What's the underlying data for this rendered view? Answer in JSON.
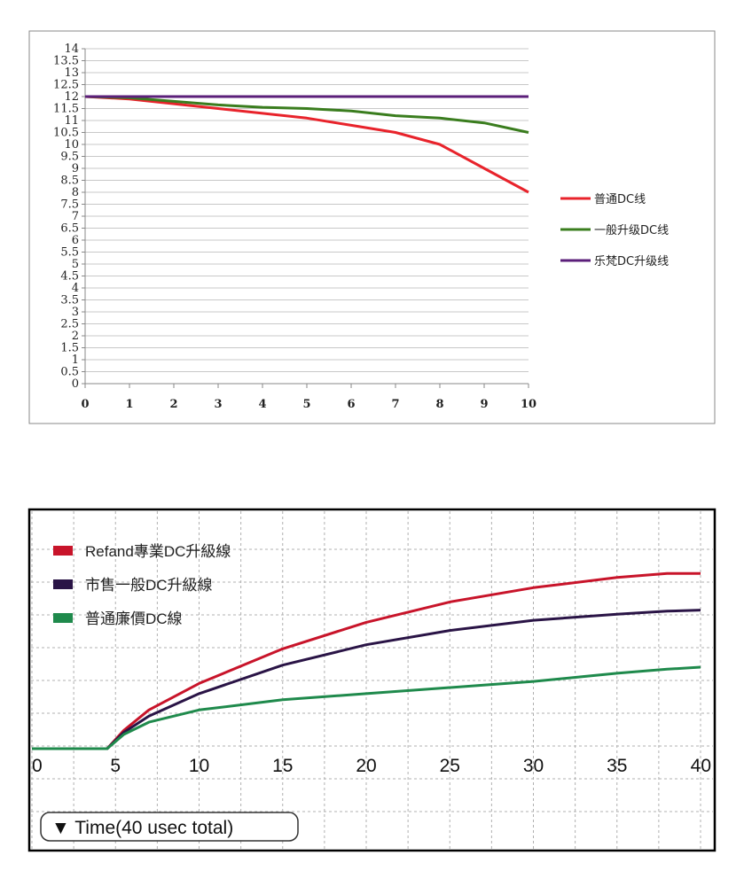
{
  "chart_data": [
    {
      "type": "line",
      "x": [
        0,
        1,
        2,
        3,
        4,
        5,
        6,
        7,
        8,
        9,
        10
      ],
      "xlim": [
        0,
        10
      ],
      "ylim": [
        0,
        14
      ],
      "xticks": [
        "0",
        "1",
        "2",
        "3",
        "4",
        "5",
        "6",
        "7",
        "8",
        "9",
        "10"
      ],
      "yticks": [
        "0",
        "0.5",
        "1",
        "1.5",
        "2",
        "2.5",
        "3",
        "3.5",
        "4",
        "4.5",
        "5",
        "5.5",
        "6",
        "6.5",
        "7",
        "7.5",
        "8",
        "8.5",
        "9",
        "9.5",
        "10",
        "10.5",
        "11",
        "11.5",
        "12",
        "12.5",
        "13",
        "13.5",
        "14"
      ],
      "grid": true,
      "legend_position": "right",
      "series": [
        {
          "name": "普通DC线",
          "color": "#e8232b",
          "values": [
            12,
            11.9,
            11.7,
            11.5,
            11.3,
            11.1,
            10.8,
            10.5,
            10.0,
            9.0,
            8.0
          ]
        },
        {
          "name": "一般升级DC线",
          "color": "#3a7d1e",
          "values": [
            12,
            11.95,
            11.8,
            11.65,
            11.55,
            11.5,
            11.4,
            11.2,
            11.1,
            10.9,
            10.5
          ]
        },
        {
          "name": "乐梵DC升级线",
          "color": "#5b1f7a",
          "values": [
            12,
            12,
            12,
            12,
            12,
            12,
            12,
            12,
            12,
            12,
            12
          ]
        }
      ]
    },
    {
      "type": "line",
      "xlim": [
        0,
        40
      ],
      "ylim": [
        0,
        10
      ],
      "xticks": [
        "0",
        "5",
        "10",
        "15",
        "20",
        "25",
        "30",
        "35",
        "40"
      ],
      "grid": true,
      "legend_position": "top-left",
      "xlabel": "▼ Time(40 usec total)",
      "series": [
        {
          "name": "Refand專業DC升級線",
          "color": "#c8142a",
          "x": [
            0,
            4.5,
            5.5,
            7,
            10,
            15,
            20,
            25,
            30,
            35,
            38,
            40
          ],
          "values": [
            0,
            0,
            0.9,
            1.9,
            3.2,
            4.9,
            6.2,
            7.2,
            7.9,
            8.4,
            8.6,
            8.6
          ]
        },
        {
          "name": "市售一般DC升級線",
          "color": "#2a1446",
          "x": [
            0,
            4.5,
            5.5,
            7,
            10,
            15,
            20,
            25,
            30,
            35,
            38,
            40
          ],
          "values": [
            0,
            0,
            0.8,
            1.6,
            2.7,
            4.1,
            5.1,
            5.8,
            6.3,
            6.6,
            6.75,
            6.8
          ]
        },
        {
          "name": "普通廉價DC線",
          "color": "#1f8a4c",
          "x": [
            0,
            4.5,
            5.5,
            7,
            10,
            15,
            20,
            25,
            30,
            35,
            38,
            40
          ],
          "values": [
            0,
            0,
            0.7,
            1.3,
            1.9,
            2.4,
            2.7,
            3.0,
            3.3,
            3.7,
            3.9,
            4.0
          ]
        }
      ]
    }
  ]
}
